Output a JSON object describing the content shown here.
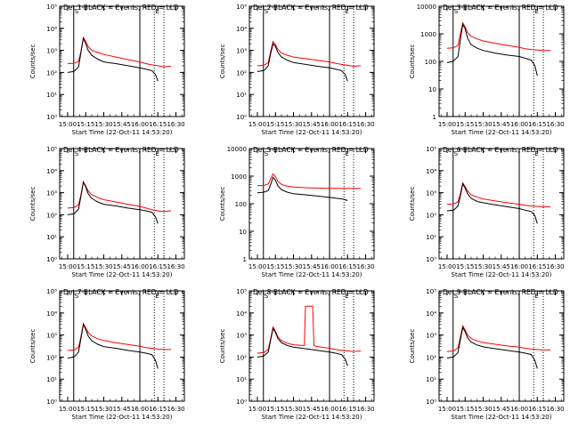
{
  "figure": {
    "type": "3x3 grid of log-scale time series",
    "ylabel": "Counts/sec",
    "xlabel": "Start Time (22-Oct-11 14:53:20)",
    "xticks": [
      "15:00",
      "15:15",
      "15:30",
      "15:45",
      "16:00",
      "16:15",
      "16:30"
    ],
    "series_colors": {
      "events": "#000000",
      "lld": "#ff0000"
    },
    "axis_color": "#000000",
    "background": "#ffffff",
    "log_y": true
  },
  "chart_data": [
    {
      "type": "line",
      "title": "Det 1-BLACK = Events, RED = LLD",
      "ylim": [
        1,
        100000
      ],
      "yticks": [
        1,
        10,
        100,
        1000,
        10000,
        100000
      ],
      "ytick_labels": [
        "10⁰",
        "10¹",
        "10²",
        "10³",
        "10⁴",
        "10⁵"
      ],
      "vlines_solid": [
        "15:05",
        "16:00"
      ],
      "vlines_dotted": [
        "16:12",
        "16:20"
      ],
      "series": [
        {
          "key": "events",
          "x": [
            "15:00",
            "15:05",
            "15:06",
            "15:09",
            "15:11",
            "15:13",
            "15:15",
            "15:17",
            "15:20",
            "15:25",
            "15:30",
            "15:40",
            "15:50",
            "16:00",
            "16:05",
            "16:10",
            "16:13",
            "16:15"
          ],
          "values": [
            100,
            110,
            120,
            180,
            800,
            3500,
            2000,
            1000,
            600,
            400,
            300,
            250,
            200,
            160,
            140,
            120,
            80,
            40
          ]
        },
        {
          "key": "lld",
          "x": [
            "15:00",
            "15:05",
            "15:06",
            "15:09",
            "15:11",
            "15:13",
            "15:15",
            "15:17",
            "15:20",
            "15:25",
            "15:30",
            "15:40",
            "15:50",
            "16:00",
            "16:05",
            "16:10",
            "16:15",
            "16:20",
            "16:26"
          ],
          "values": [
            250,
            260,
            270,
            320,
            900,
            3800,
            2500,
            1500,
            1000,
            800,
            650,
            500,
            380,
            300,
            250,
            220,
            200,
            180,
            190
          ]
        }
      ]
    },
    {
      "type": "line",
      "title": "Det 2-BLACK = Events, RED = LLD",
      "ylim": [
        1,
        100000
      ],
      "yticks": [
        1,
        10,
        100,
        1000,
        10000,
        100000
      ],
      "ytick_labels": [
        "10⁰",
        "10¹",
        "10²",
        "10³",
        "10⁴",
        "10⁵"
      ],
      "vlines_solid": [
        "15:05",
        "16:00"
      ],
      "vlines_dotted": [
        "16:12",
        "16:20"
      ],
      "series": [
        {
          "key": "events",
          "x": [
            "15:00",
            "15:05",
            "15:06",
            "15:09",
            "15:11",
            "15:13",
            "15:15",
            "15:17",
            "15:20",
            "15:25",
            "15:30",
            "15:40",
            "15:50",
            "16:00",
            "16:05",
            "16:10",
            "16:13",
            "16:15"
          ],
          "values": [
            110,
            120,
            130,
            200,
            700,
            2000,
            1500,
            800,
            500,
            350,
            280,
            230,
            190,
            160,
            140,
            120,
            80,
            40
          ]
        },
        {
          "key": "lld",
          "x": [
            "15:00",
            "15:05",
            "15:06",
            "15:09",
            "15:11",
            "15:13",
            "15:15",
            "15:17",
            "15:20",
            "15:25",
            "15:30",
            "15:40",
            "15:50",
            "16:00",
            "16:05",
            "16:10",
            "16:15",
            "16:20",
            "16:26"
          ],
          "values": [
            200,
            210,
            220,
            280,
            900,
            2500,
            1800,
            1100,
            750,
            600,
            500,
            420,
            350,
            300,
            260,
            230,
            210,
            190,
            200
          ]
        }
      ]
    },
    {
      "type": "line",
      "title": "Det 3-BLACK = Events, RED = LLD",
      "ylim": [
        1,
        10000
      ],
      "yticks": [
        1,
        10,
        100,
        1000,
        10000
      ],
      "ytick_labels": [
        "1",
        "10",
        "100",
        "1000",
        "10000"
      ],
      "vlines_solid": [
        "15:05",
        "16:00"
      ],
      "vlines_dotted": [
        "16:12",
        "16:20"
      ],
      "series": [
        {
          "key": "events",
          "x": [
            "15:00",
            "15:05",
            "15:06",
            "15:09",
            "15:11",
            "15:13",
            "15:15",
            "15:17",
            "15:20",
            "15:25",
            "15:30",
            "15:40",
            "15:50",
            "16:00",
            "16:05",
            "16:10",
            "16:13",
            "16:15"
          ],
          "values": [
            90,
            100,
            110,
            150,
            600,
            2200,
            1500,
            700,
            400,
            300,
            250,
            200,
            170,
            150,
            130,
            110,
            70,
            30
          ]
        },
        {
          "key": "lld",
          "x": [
            "15:00",
            "15:05",
            "15:06",
            "15:09",
            "15:11",
            "15:13",
            "15:15",
            "15:17",
            "15:20",
            "15:25",
            "15:30",
            "15:40",
            "15:50",
            "16:00",
            "16:05",
            "16:10",
            "16:15",
            "16:20",
            "16:26"
          ],
          "values": [
            300,
            310,
            320,
            380,
            1000,
            2500,
            1800,
            1100,
            800,
            650,
            550,
            450,
            380,
            320,
            290,
            270,
            260,
            250,
            250
          ]
        }
      ]
    },
    {
      "type": "line",
      "title": "Det 4-BLACK = Events, RED = LLD",
      "ylim": [
        1,
        100000
      ],
      "yticks": [
        1,
        10,
        100,
        1000,
        10000,
        100000
      ],
      "ytick_labels": [
        "10⁰",
        "10¹",
        "10²",
        "10³",
        "10⁴",
        "10⁵"
      ],
      "vlines_solid": [
        "15:05",
        "16:00"
      ],
      "vlines_dotted": [
        "16:12",
        "16:20"
      ],
      "series": [
        {
          "key": "events",
          "x": [
            "15:00",
            "15:05",
            "15:06",
            "15:09",
            "15:11",
            "15:13",
            "15:15",
            "15:17",
            "15:20",
            "15:25",
            "15:30",
            "15:40",
            "15:50",
            "16:00",
            "16:05",
            "16:10",
            "16:13",
            "16:15"
          ],
          "values": [
            100,
            110,
            120,
            180,
            700,
            3000,
            1800,
            900,
            550,
            380,
            300,
            250,
            200,
            170,
            150,
            130,
            80,
            40
          ]
        },
        {
          "key": "lld",
          "x": [
            "15:00",
            "15:05",
            "15:06",
            "15:09",
            "15:11",
            "15:13",
            "15:15",
            "15:17",
            "15:20",
            "15:25",
            "15:30",
            "15:40",
            "15:50",
            "16:00",
            "16:05",
            "16:10",
            "16:15",
            "16:20",
            "16:26"
          ],
          "values": [
            200,
            210,
            220,
            280,
            800,
            3200,
            2000,
            1200,
            800,
            600,
            480,
            380,
            300,
            240,
            200,
            170,
            150,
            140,
            150
          ]
        }
      ]
    },
    {
      "type": "line",
      "title": "Det 5-BLACK = Events, RED = LLD",
      "ylim": [
        1,
        10000
      ],
      "yticks": [
        1,
        10,
        100,
        1000,
        10000
      ],
      "ytick_labels": [
        "1",
        "10",
        "100",
        "1000",
        "10000"
      ],
      "vlines_solid": [
        "15:05",
        "16:00"
      ],
      "vlines_dotted": [
        "16:12",
        "16:20"
      ],
      "series": [
        {
          "key": "events",
          "x": [
            "15:00",
            "15:05",
            "15:06",
            "15:09",
            "15:11",
            "15:13",
            "15:15",
            "15:17",
            "15:20",
            "15:25",
            "15:30",
            "15:40",
            "15:50",
            "16:00",
            "16:05",
            "16:10",
            "16:13",
            "16:15"
          ],
          "values": [
            250,
            260,
            270,
            300,
            500,
            900,
            700,
            450,
            320,
            260,
            230,
            210,
            190,
            170,
            160,
            150,
            140,
            130
          ]
        },
        {
          "key": "lld",
          "x": [
            "15:00",
            "15:05",
            "15:06",
            "15:09",
            "15:11",
            "15:13",
            "15:15",
            "15:17",
            "15:20",
            "15:25",
            "15:30",
            "15:40",
            "15:50",
            "16:00",
            "16:05",
            "16:10",
            "16:15",
            "16:20",
            "16:26"
          ],
          "values": [
            450,
            460,
            470,
            520,
            800,
            1200,
            950,
            650,
            500,
            430,
            400,
            380,
            370,
            360,
            360,
            360,
            360,
            360,
            360
          ]
        }
      ]
    },
    {
      "type": "line",
      "title": "Det 6-BLACK = Events, RED = LLD",
      "ylim": [
        1,
        100000
      ],
      "yticks": [
        1,
        10,
        100,
        1000,
        10000,
        100000
      ],
      "ytick_labels": [
        "10⁰",
        "10¹",
        "10²",
        "10³",
        "10⁴",
        "10⁵"
      ],
      "vlines_solid": [
        "15:05",
        "16:00"
      ],
      "vlines_dotted": [
        "16:12",
        "16:20"
      ],
      "series": [
        {
          "key": "events",
          "x": [
            "15:00",
            "15:05",
            "15:06",
            "15:09",
            "15:11",
            "15:13",
            "15:15",
            "15:17",
            "15:20",
            "15:25",
            "15:30",
            "15:40",
            "15:50",
            "16:00",
            "16:05",
            "16:10",
            "16:13",
            "16:15"
          ],
          "values": [
            150,
            160,
            170,
            250,
            700,
            2500,
            1600,
            900,
            550,
            400,
            350,
            280,
            230,
            190,
            160,
            140,
            90,
            40
          ]
        },
        {
          "key": "lld",
          "x": [
            "15:00",
            "15:05",
            "15:06",
            "15:09",
            "15:11",
            "15:13",
            "15:15",
            "15:17",
            "15:20",
            "15:25",
            "15:30",
            "15:40",
            "15:50",
            "16:00",
            "16:05",
            "16:10",
            "16:15",
            "16:20",
            "16:26"
          ],
          "values": [
            300,
            310,
            320,
            380,
            900,
            2800,
            1900,
            1200,
            800,
            620,
            520,
            420,
            350,
            300,
            270,
            250,
            240,
            230,
            230
          ]
        }
      ]
    },
    {
      "type": "line",
      "title": "Det 7-BLACK = Events, RED = LLD",
      "ylim": [
        1,
        100000
      ],
      "yticks": [
        1,
        10,
        100,
        1000,
        10000,
        100000
      ],
      "ytick_labels": [
        "10⁰",
        "10¹",
        "10²",
        "10³",
        "10⁴",
        "10⁵"
      ],
      "vlines_solid": [
        "15:05",
        "16:00"
      ],
      "vlines_dotted": [
        "16:12",
        "16:20"
      ],
      "series": [
        {
          "key": "events",
          "x": [
            "15:00",
            "15:05",
            "15:06",
            "15:09",
            "15:11",
            "15:13",
            "15:15",
            "15:17",
            "15:20",
            "15:25",
            "15:30",
            "15:40",
            "15:50",
            "16:00",
            "16:05",
            "16:10",
            "16:13",
            "16:15"
          ],
          "values": [
            90,
            100,
            110,
            170,
            700,
            3000,
            1800,
            900,
            550,
            380,
            300,
            250,
            200,
            170,
            150,
            130,
            70,
            30
          ]
        },
        {
          "key": "lld",
          "x": [
            "15:00",
            "15:05",
            "15:06",
            "15:09",
            "15:11",
            "15:13",
            "15:15",
            "15:17",
            "15:20",
            "15:25",
            "15:30",
            "15:40",
            "15:50",
            "16:00",
            "16:05",
            "16:10",
            "16:15",
            "16:20",
            "16:26"
          ],
          "values": [
            200,
            210,
            220,
            280,
            850,
            3300,
            2100,
            1300,
            900,
            680,
            560,
            450,
            370,
            310,
            270,
            250,
            230,
            220,
            220
          ]
        }
      ]
    },
    {
      "type": "line",
      "title": "Det 8-BLACK = Events, RED = LLD",
      "ylim": [
        1,
        100000
      ],
      "yticks": [
        1,
        10,
        100,
        1000,
        10000,
        100000
      ],
      "ytick_labels": [
        "10⁰",
        "10¹",
        "10²",
        "10³",
        "10⁴",
        "10⁵"
      ],
      "vlines_solid": [
        "15:05",
        "16:00"
      ],
      "vlines_dotted": [
        "16:12",
        "16:20"
      ],
      "series": [
        {
          "key": "events",
          "x": [
            "15:00",
            "15:05",
            "15:06",
            "15:09",
            "15:11",
            "15:13",
            "15:15",
            "15:17",
            "15:20",
            "15:25",
            "15:30",
            "15:40",
            "15:50",
            "16:00",
            "16:05",
            "16:10",
            "16:13",
            "16:15"
          ],
          "values": [
            100,
            110,
            120,
            170,
            600,
            2000,
            1300,
            700,
            450,
            330,
            280,
            240,
            200,
            170,
            150,
            130,
            80,
            40
          ]
        },
        {
          "key": "lld",
          "x": [
            "15:00",
            "15:05",
            "15:06",
            "15:09",
            "15:11",
            "15:13",
            "15:15",
            "15:17",
            "15:20",
            "15:25",
            "15:30",
            "15:39",
            "15:40",
            "15:46",
            "15:47",
            "15:50",
            "16:00",
            "16:05",
            "16:10",
            "16:15",
            "16:20",
            "16:26"
          ],
          "values": [
            150,
            160,
            170,
            220,
            700,
            2300,
            1500,
            850,
            550,
            420,
            360,
            330,
            20000,
            20000,
            330,
            300,
            250,
            220,
            200,
            190,
            180,
            190
          ]
        }
      ]
    },
    {
      "type": "line",
      "title": "Det 9-BLACK = Events, RED = LLD",
      "ylim": [
        1,
        100000
      ],
      "yticks": [
        1,
        10,
        100,
        1000,
        10000,
        100000
      ],
      "ytick_labels": [
        "10⁰",
        "10¹",
        "10²",
        "10³",
        "10⁴",
        "10⁵"
      ],
      "vlines_solid": [
        "15:05",
        "16:00"
      ],
      "vlines_dotted": [
        "16:12",
        "16:20"
      ],
      "series": [
        {
          "key": "events",
          "x": [
            "15:00",
            "15:05",
            "15:06",
            "15:09",
            "15:11",
            "15:13",
            "15:15",
            "15:17",
            "15:20",
            "15:25",
            "15:30",
            "15:40",
            "15:50",
            "16:00",
            "16:05",
            "16:10",
            "16:13",
            "16:15"
          ],
          "values": [
            90,
            100,
            110,
            160,
            600,
            2200,
            1400,
            750,
            480,
            350,
            290,
            240,
            200,
            170,
            150,
            130,
            70,
            30
          ]
        },
        {
          "key": "lld",
          "x": [
            "15:00",
            "15:05",
            "15:06",
            "15:09",
            "15:11",
            "15:13",
            "15:15",
            "15:17",
            "15:20",
            "15:25",
            "15:30",
            "15:40",
            "15:50",
            "16:00",
            "16:05",
            "16:10",
            "16:15",
            "16:20",
            "16:26"
          ],
          "values": [
            180,
            190,
            200,
            260,
            800,
            2600,
            1700,
            1000,
            700,
            540,
            460,
            380,
            320,
            280,
            250,
            230,
            220,
            210,
            210
          ]
        }
      ]
    }
  ]
}
